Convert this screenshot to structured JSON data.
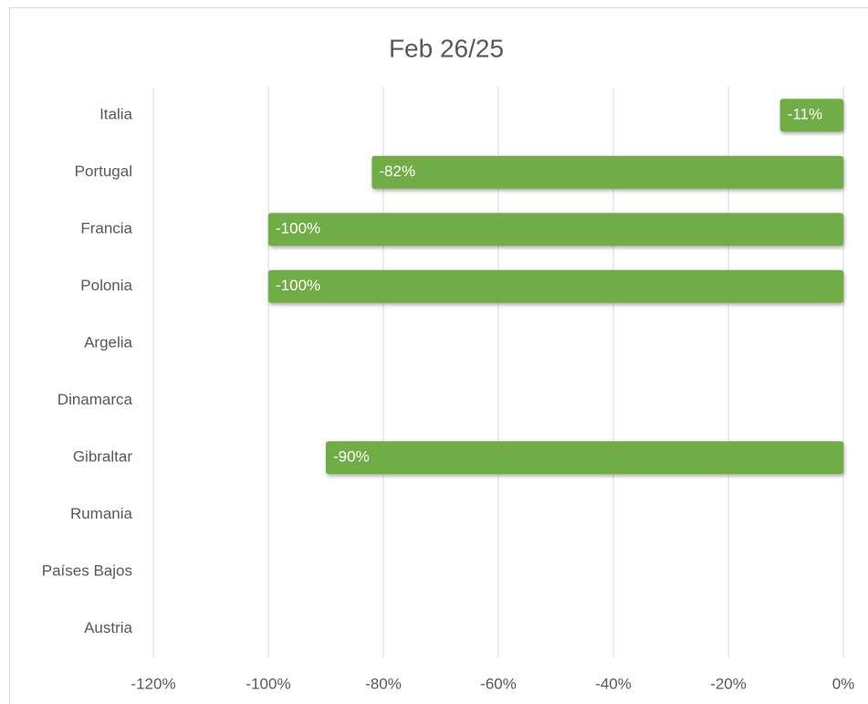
{
  "chart_data": {
    "type": "barh",
    "title": "Feb 26/25",
    "categories": [
      "Italia",
      "Portugal",
      "Francia",
      "Polonia",
      "Argelia",
      "Dinamarca",
      "Gibraltar",
      "Rumania",
      "Países Bajos",
      "Austria"
    ],
    "values": [
      -11,
      -82,
      -100,
      -100,
      null,
      null,
      -90,
      null,
      null,
      null
    ],
    "value_labels": [
      "-11%",
      "-82%",
      "-100%",
      "-100%",
      null,
      null,
      "-90%",
      null,
      null,
      null
    ],
    "color": "#70ad47",
    "xlim": [
      -120,
      0
    ],
    "xticks": [
      {
        "value": -120,
        "label": "-120%"
      },
      {
        "value": -100,
        "label": "-100%"
      },
      {
        "value": -80,
        "label": "-80%"
      },
      {
        "value": -60,
        "label": "-60%"
      },
      {
        "value": -40,
        "label": "-40%"
      },
      {
        "value": -20,
        "label": "-20%"
      },
      {
        "value": 0,
        "label": "0%"
      }
    ],
    "grid": true
  }
}
